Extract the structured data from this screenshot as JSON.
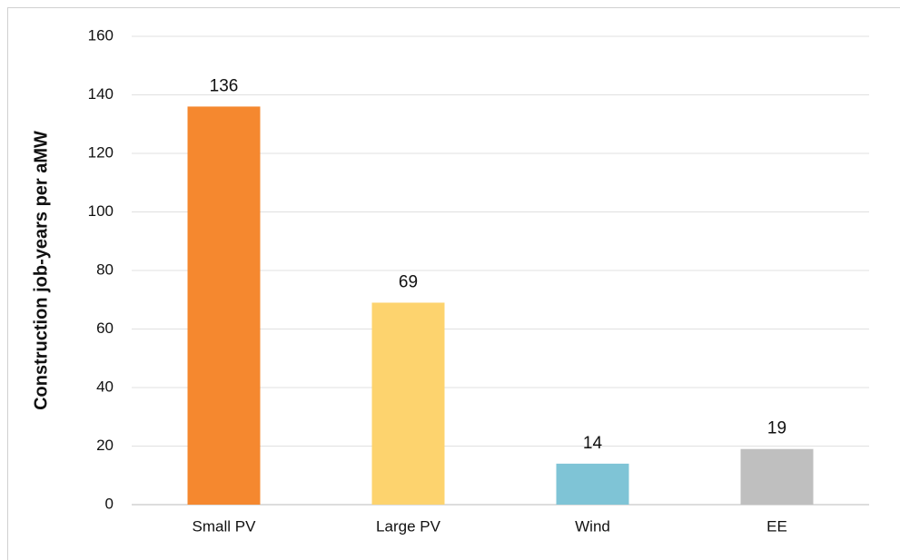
{
  "chart_data": {
    "type": "bar",
    "y_label": "Construction job-years per aMW",
    "categories": [
      "Small PV",
      "Large PV",
      "Wind",
      "EE"
    ],
    "values": [
      136,
      69,
      14,
      19
    ],
    "colors": [
      "#f5882f",
      "#fdd36e",
      "#7fc4d6",
      "#bfbfbf"
    ],
    "ylim": [
      0,
      160
    ],
    "yticks": [
      0,
      20,
      40,
      60,
      80,
      100,
      120,
      140,
      160
    ],
    "grid": true
  }
}
